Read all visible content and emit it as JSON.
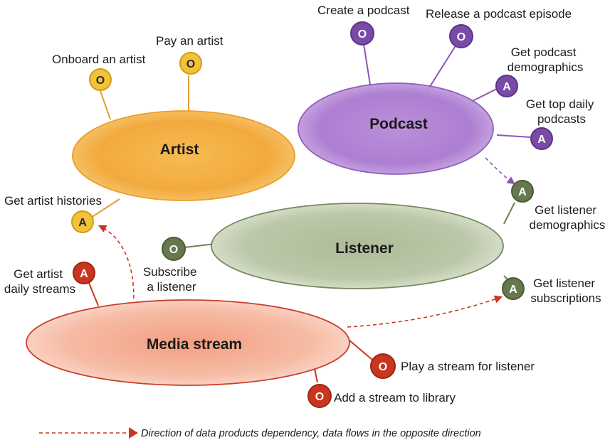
{
  "domains": {
    "artist": "Artist",
    "podcast": "Podcast",
    "listener": "Listener",
    "media_stream": "Media stream"
  },
  "badges": {
    "operational": "O",
    "analytical": "A"
  },
  "products": {
    "onboard_artist": "Onboard an artist",
    "pay_artist": "Pay an artist",
    "get_artist_histories": "Get artist histories",
    "create_podcast": "Create a podcast",
    "release_podcast_episode": "Release a podcast episode",
    "get_podcast_demographics": [
      "Get podcast",
      "demographics"
    ],
    "get_top_daily_podcasts": [
      "Get top daily",
      "podcasts"
    ],
    "get_listener_demographics": [
      "Get listener",
      "demographics"
    ],
    "subscribe_listener": [
      "Subscribe",
      "a listener"
    ],
    "get_listener_subscriptions": [
      "Get listener",
      "subscriptions"
    ],
    "get_artist_daily_streams": [
      "Get artist",
      "daily streams"
    ],
    "play_stream": "Play a stream for listener",
    "add_stream_library": "Add a stream to library"
  },
  "legend": "Direction of data products dependency, data flows in the opposite direction",
  "colors": {
    "artist": "#f0a42c",
    "artist_badge": "#f2c23a",
    "podcast": "#9f6bc9",
    "podcast_badge": "#7a4aa8",
    "listener": "#94a87a",
    "listener_badge": "#66784d",
    "media": "#f3a185",
    "media_badge": "#c8361f",
    "dependency": "#c8361f"
  }
}
